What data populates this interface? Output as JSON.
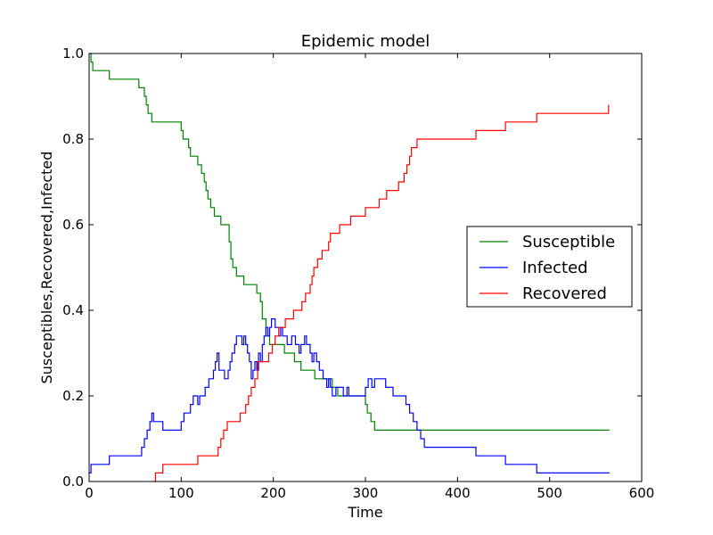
{
  "chart_data": {
    "type": "line",
    "title": "Epidemic model",
    "xlabel": "Time",
    "ylabel": "Susceptibles,Recovered,Infected",
    "xlim": [
      0,
      600
    ],
    "ylim": [
      0,
      1.0
    ],
    "xticks": [
      0,
      100,
      200,
      300,
      400,
      500,
      600
    ],
    "yticks": [
      0.0,
      0.2,
      0.4,
      0.6,
      0.8,
      1.0
    ],
    "xtick_labels": [
      "0",
      "100",
      "200",
      "300",
      "400",
      "500",
      "600"
    ],
    "ytick_labels": [
      "0.0",
      "0.2",
      "0.4",
      "0.6",
      "0.8",
      "1.0"
    ],
    "grid": false,
    "legend_position": "center-right",
    "step": true,
    "series": [
      {
        "name": "Susceptible",
        "color": "#008000",
        "x": [
          0,
          2,
          4,
          22,
          54,
          57,
          60,
          62,
          64,
          66,
          68,
          70,
          100,
          102,
          105,
          108,
          110,
          112,
          115,
          118,
          122,
          125,
          127,
          129,
          132,
          134,
          136,
          138,
          140,
          143,
          148,
          152,
          154,
          156,
          158,
          160,
          164,
          168,
          182,
          184,
          186,
          188,
          192,
          196,
          198,
          200,
          210,
          212,
          218,
          223,
          226,
          230,
          234,
          238,
          243,
          245,
          247,
          251,
          264,
          268,
          270,
          272,
          274,
          276,
          278,
          281,
          300,
          302,
          306,
          308,
          310,
          312,
          565
        ],
        "y": [
          1.0,
          0.98,
          0.96,
          0.94,
          0.92,
          0.92,
          0.9,
          0.88,
          0.86,
          0.86,
          0.84,
          0.84,
          0.82,
          0.8,
          0.8,
          0.78,
          0.76,
          0.76,
          0.76,
          0.74,
          0.72,
          0.7,
          0.68,
          0.66,
          0.64,
          0.64,
          0.62,
          0.62,
          0.62,
          0.6,
          0.6,
          0.56,
          0.52,
          0.5,
          0.5,
          0.48,
          0.48,
          0.46,
          0.44,
          0.44,
          0.42,
          0.38,
          0.34,
          0.32,
          0.32,
          0.32,
          0.32,
          0.3,
          0.3,
          0.28,
          0.28,
          0.26,
          0.26,
          0.26,
          0.26,
          0.24,
          0.24,
          0.24,
          0.22,
          0.22,
          0.2,
          0.2,
          0.2,
          0.2,
          0.2,
          0.2,
          0.18,
          0.16,
          0.14,
          0.14,
          0.12,
          0.12,
          0.12
        ]
      },
      {
        "name": "Infected",
        "color": "#0000ff",
        "x": [
          0,
          2,
          4,
          22,
          54,
          57,
          60,
          63,
          66,
          68,
          70,
          73,
          80,
          100,
          103,
          110,
          113,
          116,
          118,
          120,
          126,
          130,
          133,
          135,
          137,
          139,
          141,
          143,
          147,
          151,
          153,
          155,
          158,
          160,
          162,
          164,
          166,
          168,
          170,
          172,
          174,
          176,
          178,
          180,
          182,
          184,
          186,
          188,
          190,
          192,
          194,
          196,
          198,
          200,
          202,
          206,
          208,
          210,
          212,
          215,
          220,
          224,
          228,
          230,
          234,
          236,
          238,
          240,
          242,
          244,
          247,
          250,
          254,
          258,
          260,
          262,
          264,
          268,
          272,
          276,
          280,
          282,
          284,
          287,
          300,
          303,
          307,
          310,
          316,
          322,
          325,
          328,
          330,
          344,
          348,
          352,
          356,
          360,
          364,
          368,
          380,
          420,
          452,
          486,
          565
        ],
        "y": [
          0.02,
          0.04,
          0.04,
          0.06,
          0.06,
          0.08,
          0.1,
          0.12,
          0.14,
          0.16,
          0.14,
          0.14,
          0.12,
          0.14,
          0.16,
          0.18,
          0.2,
          0.2,
          0.18,
          0.2,
          0.22,
          0.24,
          0.24,
          0.26,
          0.28,
          0.3,
          0.26,
          0.26,
          0.24,
          0.26,
          0.28,
          0.3,
          0.32,
          0.34,
          0.34,
          0.34,
          0.32,
          0.34,
          0.32,
          0.3,
          0.28,
          0.24,
          0.26,
          0.28,
          0.26,
          0.3,
          0.28,
          0.32,
          0.34,
          0.36,
          0.34,
          0.36,
          0.38,
          0.38,
          0.36,
          0.34,
          0.36,
          0.34,
          0.34,
          0.32,
          0.34,
          0.32,
          0.3,
          0.32,
          0.34,
          0.32,
          0.32,
          0.3,
          0.28,
          0.3,
          0.28,
          0.26,
          0.24,
          0.22,
          0.24,
          0.22,
          0.2,
          0.22,
          0.22,
          0.2,
          0.22,
          0.2,
          0.2,
          0.2,
          0.22,
          0.24,
          0.22,
          0.24,
          0.24,
          0.22,
          0.22,
          0.22,
          0.2,
          0.18,
          0.16,
          0.14,
          0.12,
          0.1,
          0.08,
          0.08,
          0.08,
          0.06,
          0.04,
          0.02,
          0.02
        ]
      },
      {
        "name": "Recovered",
        "color": "#ff0000",
        "x": [
          70,
          72,
          80,
          118,
          140,
          143,
          146,
          150,
          164,
          167,
          170,
          173,
          176,
          180,
          183,
          186,
          189,
          192,
          195,
          199,
          202,
          206,
          208,
          213,
          220,
          222,
          224,
          226,
          228,
          231,
          235,
          240,
          242,
          244,
          248,
          250,
          253,
          256,
          260,
          262,
          268,
          272,
          276,
          280,
          284,
          288,
          292,
          300,
          305,
          310,
          315,
          320,
          323,
          328,
          336,
          342,
          345,
          348,
          350,
          353,
          356,
          358,
          362,
          368,
          374,
          420,
          452,
          486,
          564
        ],
        "y": [
          0.0,
          0.02,
          0.04,
          0.06,
          0.08,
          0.1,
          0.12,
          0.14,
          0.16,
          0.16,
          0.18,
          0.2,
          0.22,
          0.24,
          0.28,
          0.28,
          0.28,
          0.28,
          0.3,
          0.32,
          0.34,
          0.36,
          0.36,
          0.38,
          0.38,
          0.4,
          0.4,
          0.4,
          0.4,
          0.42,
          0.44,
          0.46,
          0.48,
          0.5,
          0.52,
          0.52,
          0.54,
          0.54,
          0.56,
          0.58,
          0.58,
          0.6,
          0.6,
          0.6,
          0.62,
          0.62,
          0.62,
          0.64,
          0.64,
          0.64,
          0.66,
          0.66,
          0.68,
          0.68,
          0.7,
          0.72,
          0.74,
          0.76,
          0.78,
          0.78,
          0.8,
          0.8,
          0.8,
          0.8,
          0.8,
          0.82,
          0.84,
          0.86,
          0.88
        ]
      }
    ]
  }
}
